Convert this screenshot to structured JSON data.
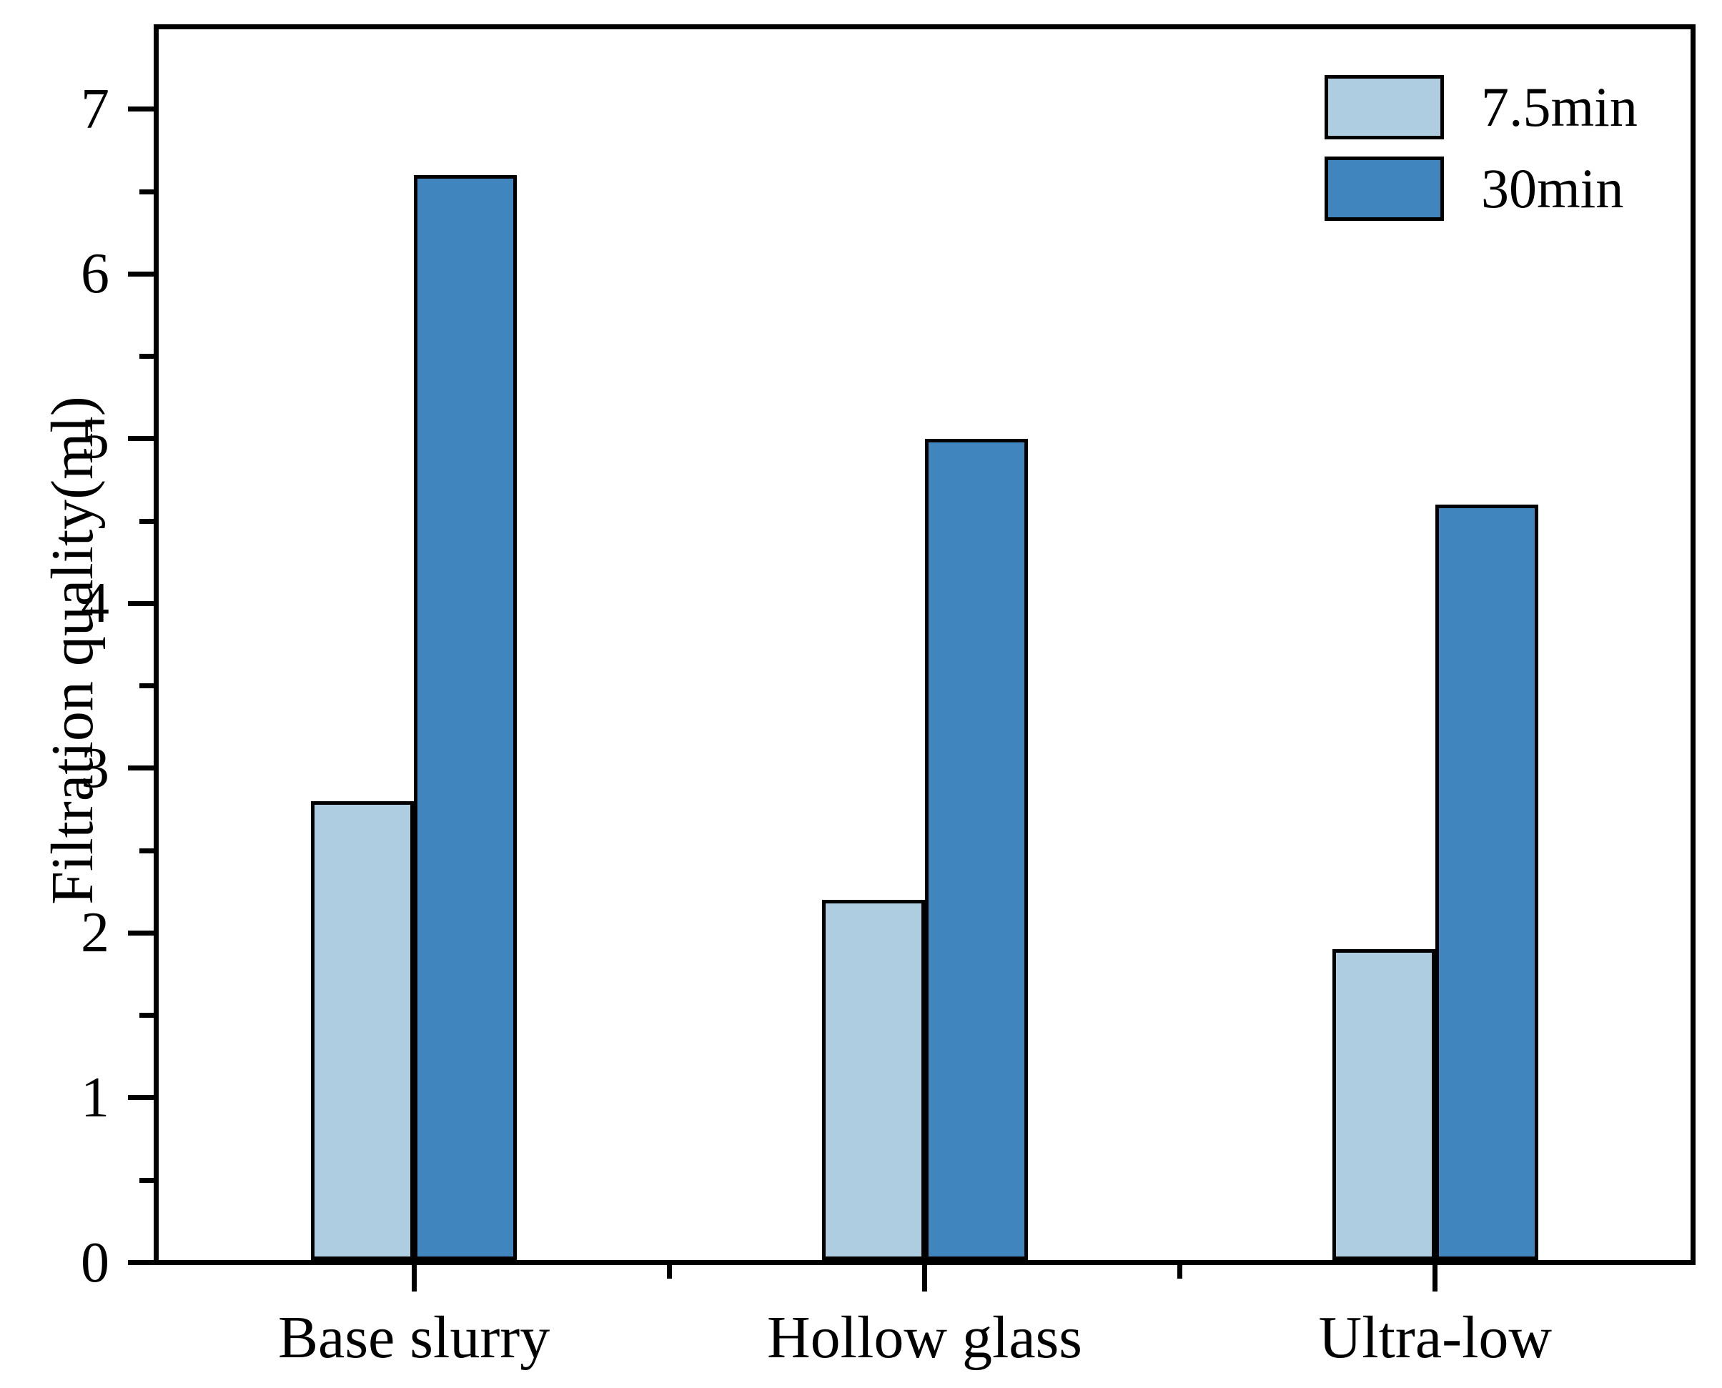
{
  "figure": {
    "background": "#ffffff"
  },
  "chart_data": {
    "type": "bar",
    "title": "",
    "categories": [
      "Base slurry",
      "Hollow glass",
      "Ultra-low"
    ],
    "series": [
      {
        "name": "7.5min",
        "color": "#AECDE1",
        "values": [
          2.8,
          2.2,
          1.9
        ]
      },
      {
        "name": "30min",
        "color": "#4185BE",
        "values": [
          6.6,
          5.0,
          4.6
        ]
      }
    ],
    "xlabel": "",
    "ylabel": "Filtration quality(ml)",
    "ylim": [
      0,
      7.5
    ],
    "ytick_major": [
      0,
      1,
      2,
      3,
      4,
      5,
      6,
      7
    ],
    "ytick_minor": [
      0.5,
      1.5,
      2.5,
      3.5,
      4.5,
      5.5,
      6.5
    ],
    "ytick_labels": [
      "0",
      "1",
      "2",
      "3",
      "4",
      "5",
      "6",
      "7"
    ],
    "grid": false,
    "legend_position": "top-right",
    "bar_edge_color": "#000000",
    "axis_color": "#000000",
    "background": "#ffffff"
  }
}
